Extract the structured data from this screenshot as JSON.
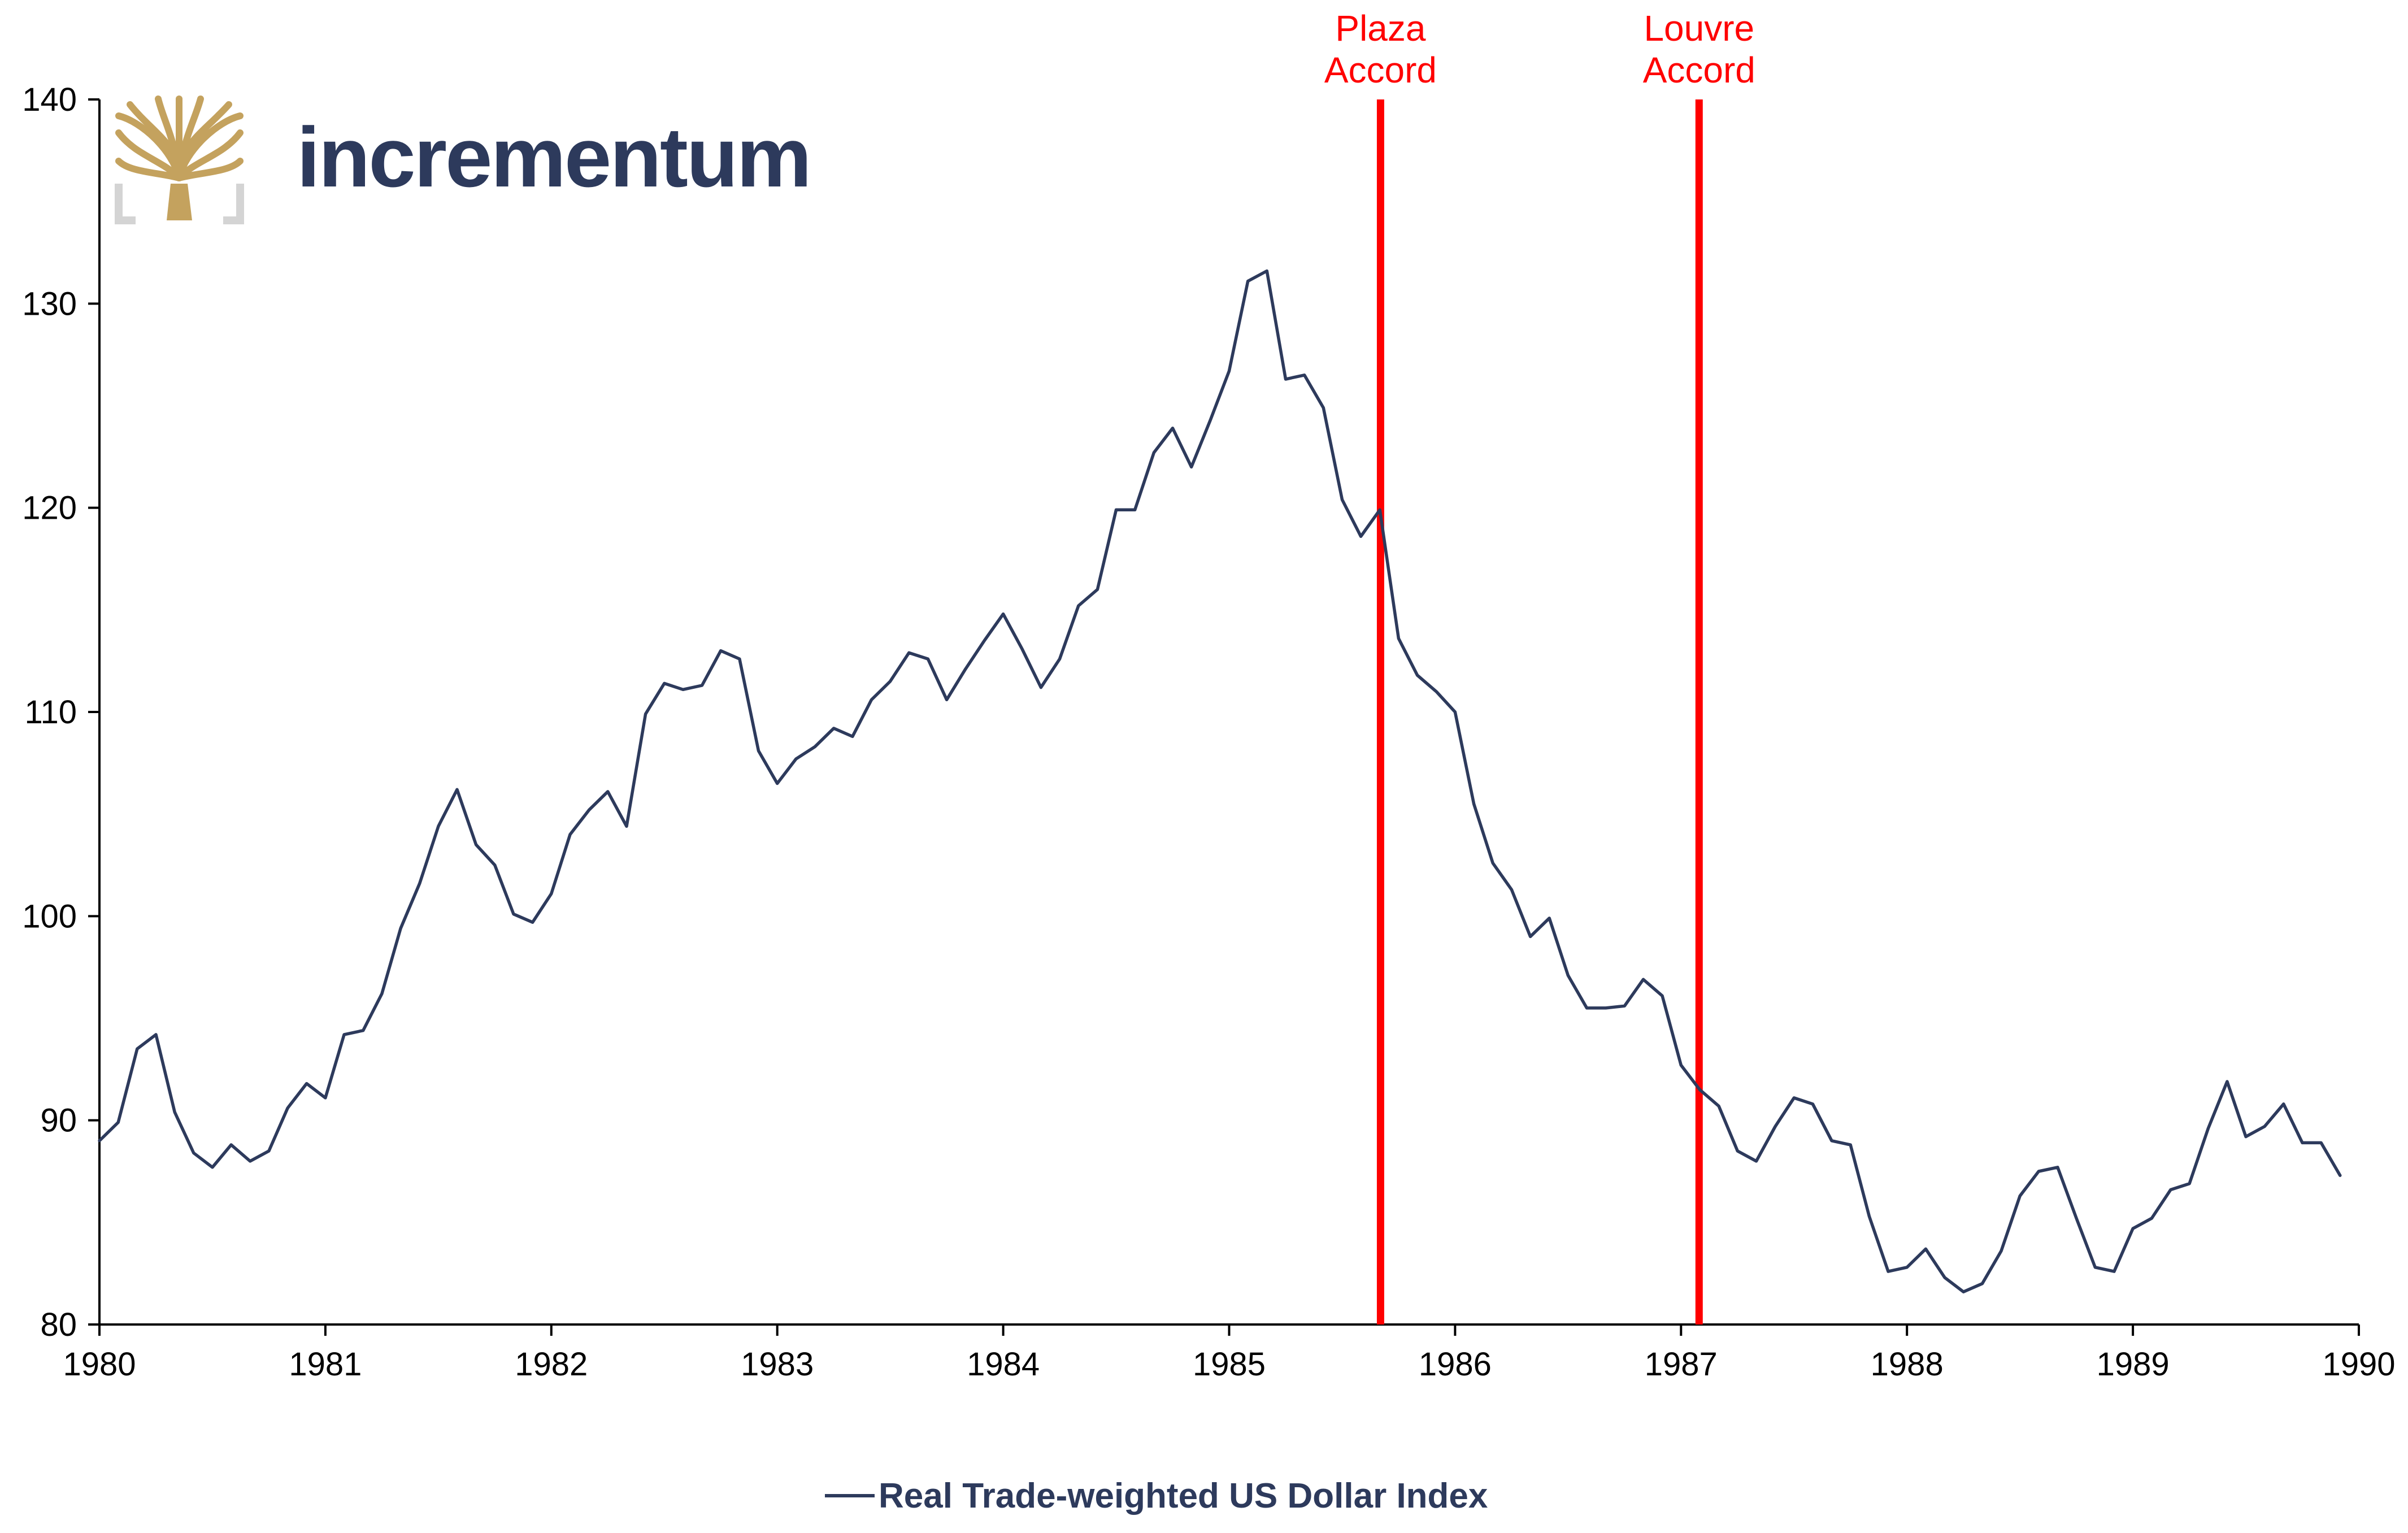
{
  "logo": {
    "wordmark": "incrementum",
    "icon": "tree-icon",
    "colors": {
      "gold": "#c4a25e",
      "grey": "#d4d4d4",
      "navy": "#2d3a5c"
    }
  },
  "chart_data": {
    "type": "line",
    "title": "",
    "xlabel": "",
    "ylabel": "",
    "xlim": [
      1980,
      1990
    ],
    "ylim": [
      80,
      140
    ],
    "x_ticks": [
      "1980",
      "1981",
      "1982",
      "1983",
      "1984",
      "1985",
      "1986",
      "1987",
      "1988",
      "1989",
      "1990"
    ],
    "y_ticks": [
      "80",
      "90",
      "100",
      "110",
      "120",
      "130",
      "140"
    ],
    "grid": false,
    "legend_position": "bottom-center",
    "series": [
      {
        "name": "Real Trade-weighted US Dollar Index",
        "color": "#2d3a5c",
        "x": [
          1980.0,
          1980.083,
          1980.167,
          1980.25,
          1980.333,
          1980.417,
          1980.5,
          1980.583,
          1980.667,
          1980.75,
          1980.833,
          1980.917,
          1981.0,
          1981.083,
          1981.167,
          1981.25,
          1981.333,
          1981.417,
          1981.5,
          1981.583,
          1981.667,
          1981.75,
          1981.833,
          1981.917,
          1982.0,
          1982.083,
          1982.167,
          1982.25,
          1982.333,
          1982.417,
          1982.5,
          1982.583,
          1982.667,
          1982.75,
          1982.833,
          1982.917,
          1983.0,
          1983.083,
          1983.167,
          1983.25,
          1983.333,
          1983.417,
          1983.5,
          1983.583,
          1983.667,
          1983.75,
          1983.833,
          1983.917,
          1984.0,
          1984.083,
          1984.167,
          1984.25,
          1984.333,
          1984.417,
          1984.5,
          1984.583,
          1984.667,
          1984.75,
          1984.833,
          1984.917,
          1985.0,
          1985.083,
          1985.167,
          1985.25,
          1985.333,
          1985.417,
          1985.5,
          1985.583,
          1985.667,
          1985.75,
          1985.833,
          1985.917,
          1986.0,
          1986.083,
          1986.167,
          1986.25,
          1986.333,
          1986.417,
          1986.5,
          1986.583,
          1986.667,
          1986.75,
          1986.833,
          1986.917,
          1987.0,
          1987.083,
          1987.167,
          1987.25,
          1987.333,
          1987.417,
          1987.5,
          1987.583,
          1987.667,
          1987.75,
          1987.833,
          1987.917,
          1988.0,
          1988.083,
          1988.167,
          1988.25,
          1988.333,
          1988.417,
          1988.5,
          1988.583,
          1988.667,
          1988.75,
          1988.833,
          1988.917,
          1989.0,
          1989.083,
          1989.167,
          1989.25,
          1989.333,
          1989.417,
          1989.5,
          1989.583,
          1989.667,
          1989.75,
          1989.833,
          1989.917
        ],
        "y": [
          89.0,
          89.9,
          93.5,
          94.2,
          90.4,
          88.4,
          87.7,
          88.8,
          88.0,
          88.5,
          90.6,
          91.8,
          91.1,
          94.2,
          94.4,
          96.2,
          99.4,
          101.6,
          104.4,
          106.2,
          103.5,
          102.5,
          100.1,
          99.7,
          101.1,
          104.0,
          105.2,
          106.1,
          104.4,
          109.9,
          111.4,
          111.1,
          111.3,
          113.0,
          112.6,
          108.1,
          106.5,
          107.7,
          108.3,
          109.2,
          108.8,
          110.6,
          111.5,
          112.9,
          112.6,
          110.6,
          112.1,
          113.5,
          114.8,
          113.1,
          111.2,
          112.6,
          115.2,
          116.0,
          119.9,
          119.9,
          122.7,
          123.9,
          122.0,
          124.3,
          126.7,
          131.1,
          131.6,
          126.3,
          126.5,
          124.9,
          120.4,
          118.6,
          119.9,
          113.6,
          111.8,
          111.0,
          110.0,
          105.5,
          102.6,
          101.3,
          99.0,
          99.9,
          97.1,
          95.5,
          95.5,
          95.6,
          96.9,
          96.1,
          92.7,
          91.5,
          90.7,
          88.5,
          88.0,
          89.7,
          91.1,
          90.8,
          89.0,
          88.8,
          85.3,
          82.6,
          82.8,
          83.7,
          82.3,
          81.6,
          82.0,
          83.6,
          86.3,
          87.5,
          87.7,
          85.2,
          82.8,
          82.6,
          84.7,
          85.2,
          86.6,
          86.9,
          89.6,
          91.9,
          89.2,
          89.7,
          90.8,
          88.9,
          88.9,
          87.3
        ]
      }
    ],
    "annotations": [
      {
        "label_line1": "Plaza",
        "label_line2": "Accord",
        "x": 1985.67,
        "color": "#ff0000"
      },
      {
        "label_line1": "Louvre",
        "label_line2": "Accord",
        "x": 1987.08,
        "color": "#ff0000"
      }
    ]
  }
}
